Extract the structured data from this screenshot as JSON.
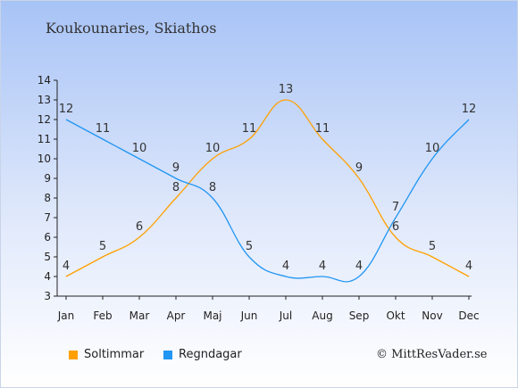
{
  "location": "Koukounaries, Skiathos",
  "credit": "© MittResVader.se",
  "colors": {
    "sun": "#FFA000",
    "rain": "#2196F3"
  },
  "chart_data": {
    "type": "line",
    "categories": [
      "Jan",
      "Feb",
      "Mar",
      "Apr",
      "Maj",
      "Jun",
      "Jul",
      "Aug",
      "Sep",
      "Okt",
      "Nov",
      "Dec"
    ],
    "series": [
      {
        "name": "Soltimmar",
        "values": [
          4,
          5,
          6,
          8,
          10,
          11,
          13,
          11,
          9,
          6,
          5,
          4
        ]
      },
      {
        "name": "Regndagar",
        "values": [
          12,
          11,
          10,
          9,
          8,
          5,
          4,
          4,
          4,
          7,
          10,
          12
        ]
      }
    ],
    "ylim": [
      3,
      14
    ],
    "yticks": [
      3,
      4,
      5,
      6,
      7,
      8,
      9,
      10,
      11,
      12,
      13,
      14
    ],
    "grid": false,
    "legend_position": "bottom-left"
  }
}
